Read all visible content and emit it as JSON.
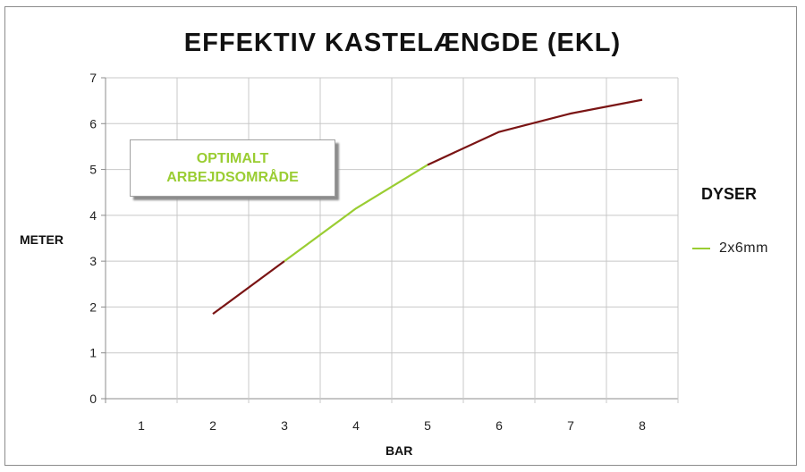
{
  "chart_data": {
    "type": "line",
    "title": "EFFEKTIV KASTELÆNGDE (EKL)",
    "xlabel": "BAR",
    "ylabel": "METER",
    "x": [
      2,
      3,
      4,
      5,
      6,
      7,
      8
    ],
    "xticks": [
      "1",
      "2",
      "3",
      "4",
      "5",
      "6",
      "7",
      "8"
    ],
    "yticks": [
      "0",
      "1",
      "2",
      "3",
      "4",
      "5",
      "6",
      "7"
    ],
    "ylim": [
      0,
      7
    ],
    "grid": true,
    "legend": {
      "title": "DYSER",
      "placement": "right"
    },
    "series": [
      {
        "name": "2x6mm",
        "values": [
          1.85,
          3.0,
          4.15,
          5.1,
          5.82,
          6.22,
          6.52
        ],
        "color": "#9acd32"
      }
    ],
    "segments": [
      {
        "x": [
          2,
          3
        ],
        "values": [
          1.85,
          3.0
        ],
        "color": "#7a1414"
      },
      {
        "x": [
          3,
          4,
          5
        ],
        "values": [
          3.0,
          4.15,
          5.1
        ],
        "color": "#9acd32"
      },
      {
        "x": [
          5,
          6,
          7,
          8
        ],
        "values": [
          5.1,
          5.82,
          6.22,
          6.52
        ],
        "color": "#7a1414"
      }
    ],
    "annotation": {
      "line1": "OPTIMALT",
      "line2": "ARBEJDSOMRÅDE",
      "color": "#9acd32"
    }
  }
}
